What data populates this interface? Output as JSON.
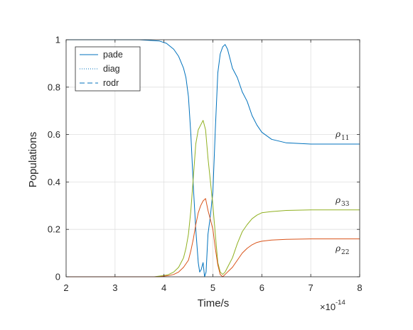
{
  "chart_data": {
    "type": "line",
    "title": "",
    "xlabel": "Time/s",
    "ylabel": "Populations",
    "x_exponent_label": "×10",
    "x_exponent_power": "-14",
    "xlim": [
      2,
      8
    ],
    "ylim": [
      0,
      1
    ],
    "xticks": [
      "2",
      "3",
      "4",
      "5",
      "6",
      "7",
      "8"
    ],
    "yticks": [
      "0",
      "0.2",
      "0.4",
      "0.6",
      "0.8",
      "1"
    ],
    "grid": true,
    "legend_position": "top-left",
    "legend": [
      {
        "label": "pade",
        "style": "solid"
      },
      {
        "label": "diag",
        "style": "dotted"
      },
      {
        "label": "rodr",
        "style": "dashed"
      }
    ],
    "annotations": [
      {
        "text": "ρ",
        "sub": "11"
      },
      {
        "text": "ρ",
        "sub": "33"
      },
      {
        "text": "ρ",
        "sub": "22"
      }
    ],
    "colors": {
      "rho11": "#0072bd",
      "rho22": "#d95319",
      "rho33": "#90b020",
      "grid": "#dfdfdf",
      "axis": "#262626"
    },
    "series": [
      {
        "key": "rho11",
        "x": [
          2.0,
          3.5,
          3.9,
          4.05,
          4.2,
          4.3,
          4.4,
          4.45,
          4.5,
          4.55,
          4.6,
          4.65,
          4.7,
          4.73,
          4.76,
          4.8,
          4.83,
          4.86,
          4.9,
          4.95,
          5.0,
          5.05,
          5.1,
          5.15,
          5.2,
          5.25,
          5.3,
          5.35,
          5.4,
          5.5,
          5.6,
          5.7,
          5.8,
          5.9,
          6.0,
          6.2,
          6.5,
          7.0,
          8.0
        ],
        "y": [
          1.0,
          1.0,
          0.995,
          0.985,
          0.96,
          0.93,
          0.88,
          0.84,
          0.76,
          0.6,
          0.38,
          0.2,
          0.06,
          0.02,
          0.03,
          0.06,
          0.0,
          0.02,
          0.18,
          0.26,
          0.36,
          0.62,
          0.86,
          0.94,
          0.97,
          0.98,
          0.96,
          0.92,
          0.88,
          0.84,
          0.78,
          0.74,
          0.68,
          0.64,
          0.61,
          0.58,
          0.565,
          0.56,
          0.56
        ]
      },
      {
        "key": "rho33",
        "x": [
          2.0,
          3.8,
          4.0,
          4.1,
          4.2,
          4.3,
          4.4,
          4.45,
          4.5,
          4.55,
          4.6,
          4.65,
          4.7,
          4.75,
          4.8,
          4.85,
          4.9,
          4.95,
          5.0,
          5.05,
          5.1,
          5.15,
          5.2,
          5.25,
          5.3,
          5.4,
          5.5,
          5.6,
          5.7,
          5.8,
          5.9,
          6.0,
          6.2,
          6.5,
          7.0,
          8.0
        ],
        "y": [
          0.0,
          0.0,
          0.005,
          0.01,
          0.02,
          0.04,
          0.08,
          0.12,
          0.18,
          0.28,
          0.42,
          0.56,
          0.62,
          0.64,
          0.66,
          0.62,
          0.5,
          0.4,
          0.3,
          0.18,
          0.06,
          0.02,
          0.01,
          0.02,
          0.04,
          0.08,
          0.14,
          0.19,
          0.22,
          0.245,
          0.26,
          0.27,
          0.275,
          0.28,
          0.282,
          0.282
        ]
      },
      {
        "key": "rho22",
        "x": [
          2.0,
          3.9,
          4.1,
          4.2,
          4.3,
          4.4,
          4.5,
          4.55,
          4.6,
          4.65,
          4.7,
          4.75,
          4.8,
          4.85,
          4.9,
          4.95,
          5.0,
          5.05,
          5.1,
          5.15,
          5.2,
          5.25,
          5.3,
          5.4,
          5.5,
          5.6,
          5.7,
          5.8,
          5.9,
          6.0,
          6.2,
          6.5,
          7.0,
          8.0
        ],
        "y": [
          0.0,
          0.0,
          0.005,
          0.01,
          0.02,
          0.04,
          0.07,
          0.11,
          0.16,
          0.22,
          0.27,
          0.3,
          0.32,
          0.33,
          0.28,
          0.24,
          0.2,
          0.12,
          0.05,
          0.01,
          0.0,
          0.01,
          0.02,
          0.04,
          0.07,
          0.1,
          0.12,
          0.135,
          0.145,
          0.15,
          0.155,
          0.158,
          0.16,
          0.16
        ]
      }
    ]
  }
}
